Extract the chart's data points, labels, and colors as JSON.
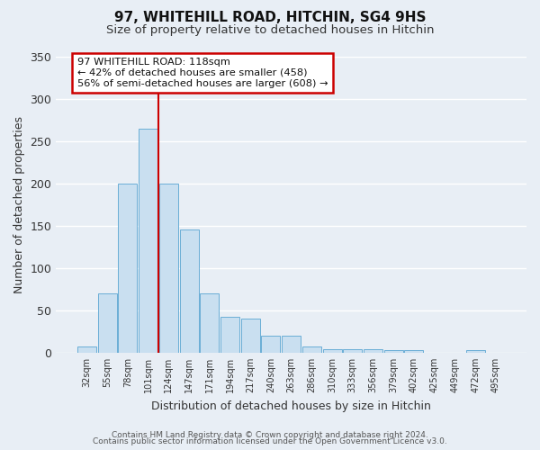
{
  "title": "97, WHITEHILL ROAD, HITCHIN, SG4 9HS",
  "subtitle": "Size of property relative to detached houses in Hitchin",
  "xlabel": "Distribution of detached houses by size in Hitchin",
  "ylabel": "Number of detached properties",
  "bar_labels": [
    "32sqm",
    "55sqm",
    "78sqm",
    "101sqm",
    "124sqm",
    "147sqm",
    "171sqm",
    "194sqm",
    "217sqm",
    "240sqm",
    "263sqm",
    "286sqm",
    "310sqm",
    "333sqm",
    "356sqm",
    "379sqm",
    "402sqm",
    "425sqm",
    "449sqm",
    "472sqm",
    "495sqm"
  ],
  "bar_values": [
    7,
    70,
    200,
    265,
    200,
    145,
    70,
    42,
    40,
    20,
    20,
    7,
    4,
    4,
    4,
    3,
    3,
    0,
    0,
    3,
    0
  ],
  "bar_color": "#c9dff0",
  "bar_edge_color": "#6aaed6",
  "vline_color": "#cc0000",
  "vline_x": 3.5,
  "annotation_title": "97 WHITEHILL ROAD: 118sqm",
  "annotation_line1": "← 42% of detached houses are smaller (458)",
  "annotation_line2": "56% of semi-detached houses are larger (608) →",
  "annotation_box_facecolor": "#ffffff",
  "annotation_box_edgecolor": "#cc0000",
  "ylim": [
    0,
    350
  ],
  "yticks": [
    0,
    50,
    100,
    150,
    200,
    250,
    300,
    350
  ],
  "bg_color": "#e8eef5",
  "grid_color": "#ffffff",
  "footer_line1": "Contains HM Land Registry data © Crown copyright and database right 2024.",
  "footer_line2": "Contains public sector information licensed under the Open Government Licence v3.0."
}
